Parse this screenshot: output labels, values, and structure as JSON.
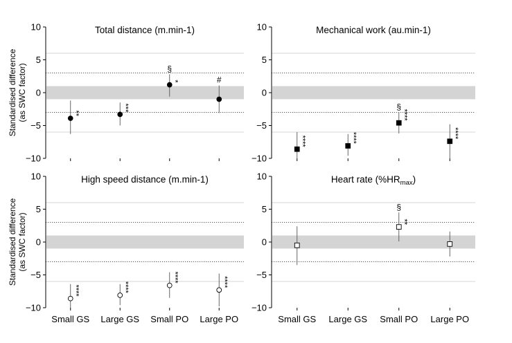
{
  "chart_data": {
    "type": "scatter",
    "categories": [
      "Small GS",
      "Large GS",
      "Small PO",
      "Large PO"
    ],
    "ylabel": [
      "Standardised difference",
      "(as SWC factor)"
    ],
    "ylim": [
      -10,
      10
    ],
    "yticks": [
      -10,
      -5,
      0,
      5,
      10
    ],
    "yticks_labels": [
      "−10",
      "−5",
      "0",
      "5",
      "10"
    ],
    "trivial_band": [
      -1,
      1
    ],
    "reference_lines": {
      "dotted": [
        3,
        -3
      ],
      "solid_light": [
        6,
        -6
      ]
    },
    "panels": [
      {
        "title": "Total distance (m.min-1)",
        "title_parts": [
          {
            "text": "Total distance (m.min-1)",
            "sub": false
          }
        ],
        "marker": "circle-filled",
        "points": [
          {
            "category": "Small GS",
            "value": -3.9,
            "lower": -6.3,
            "upper": -1.2,
            "stars": "**",
            "symbol": ""
          },
          {
            "category": "Large GS",
            "value": -3.3,
            "lower": -5.0,
            "upper": -1.5,
            "stars": "***",
            "symbol": ""
          },
          {
            "category": "Small PO",
            "value": 1.2,
            "lower": -0.6,
            "upper": 2.8,
            "stars": "*",
            "symbol": "§"
          },
          {
            "category": "Large PO",
            "value": -1.0,
            "lower": -3.1,
            "upper": 1.1,
            "stars": "",
            "symbol": "#"
          }
        ]
      },
      {
        "title": "Mechanical work (au.min-1)",
        "title_parts": [
          {
            "text": "Mechanical work (au.min-1)",
            "sub": false
          }
        ],
        "marker": "square-filled",
        "points": [
          {
            "category": "Small GS",
            "value": -8.6,
            "lower": -10.0,
            "upper": -6.0,
            "stars": "****",
            "symbol": ""
          },
          {
            "category": "Large GS",
            "value": -8.1,
            "lower": -9.6,
            "upper": -6.3,
            "stars": "****",
            "symbol": ""
          },
          {
            "category": "Small PO",
            "value": -4.6,
            "lower": -6.2,
            "upper": -3.0,
            "stars": "****",
            "symbol": "§"
          },
          {
            "category": "Large PO",
            "value": -7.4,
            "lower": -10.0,
            "upper": -4.8,
            "stars": "****",
            "symbol": ""
          }
        ]
      },
      {
        "title": "High speed distance (m.min-1)",
        "title_parts": [
          {
            "text": "High speed distance (m.min-1)",
            "sub": false
          }
        ],
        "marker": "circle-open",
        "points": [
          {
            "category": "Small GS",
            "value": -8.6,
            "lower": -10.0,
            "upper": -6.4,
            "stars": "****",
            "symbol": ""
          },
          {
            "category": "Large GS",
            "value": -8.1,
            "lower": -9.6,
            "upper": -6.4,
            "stars": "****",
            "symbol": ""
          },
          {
            "category": "Small PO",
            "value": -6.6,
            "lower": -8.5,
            "upper": -4.6,
            "stars": "****",
            "symbol": ""
          },
          {
            "category": "Large PO",
            "value": -7.3,
            "lower": -9.8,
            "upper": -4.8,
            "stars": "****",
            "symbol": ""
          }
        ]
      },
      {
        "title": "Heart rate (%HRmax)",
        "title_parts": [
          {
            "text": "Heart rate (%HR",
            "sub": false
          },
          {
            "text": "max",
            "sub": true
          },
          {
            "text": ")",
            "sub": false
          }
        ],
        "marker": "square-open",
        "points": [
          {
            "category": "Small GS",
            "value": -0.5,
            "lower": -3.5,
            "upper": 2.4,
            "stars": "",
            "symbol": ""
          },
          {
            "category": "Large GS",
            "value": null,
            "lower": null,
            "upper": null,
            "stars": "",
            "symbol": ""
          },
          {
            "category": "Small PO",
            "value": 2.3,
            "lower": 0.1,
            "upper": 4.5,
            "stars": "**",
            "symbol": "§"
          },
          {
            "category": "Large PO",
            "value": -0.3,
            "lower": -2.2,
            "upper": 1.6,
            "stars": "",
            "symbol": ""
          }
        ]
      }
    ]
  }
}
